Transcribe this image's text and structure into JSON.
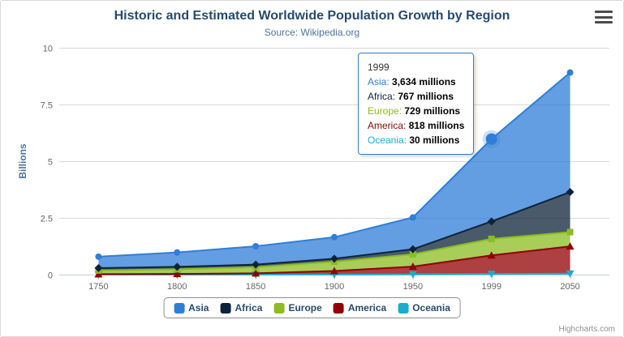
{
  "chart_data": {
    "type": "area",
    "stacked": true,
    "title": "Historic and Estimated Worldwide Population Growth by Region",
    "subtitle": "Source: Wikipedia.org",
    "categories": [
      "1750",
      "1800",
      "1850",
      "1900",
      "1950",
      "1999",
      "2050"
    ],
    "unit": "millions",
    "xlabel": "",
    "ylabel": "Billions",
    "ylim": [
      0,
      10
    ],
    "y_ticks": [
      0,
      2.5,
      5,
      7.5,
      10
    ],
    "grid": true,
    "legend_position": "bottom",
    "series": [
      {
        "name": "Asia",
        "color": "#2f7ed8",
        "marker": "circle",
        "values": [
          502,
          635,
          809,
          947,
          1402,
          3634,
          5268
        ]
      },
      {
        "name": "Africa",
        "color": "#0d233a",
        "marker": "diamond",
        "values": [
          106,
          107,
          111,
          133,
          221,
          767,
          1766
        ]
      },
      {
        "name": "Europe",
        "color": "#8bbc21",
        "marker": "square",
        "values": [
          163,
          203,
          276,
          408,
          547,
          729,
          628
        ]
      },
      {
        "name": "America",
        "color": "#910000",
        "marker": "triangle",
        "values": [
          18,
          31,
          54,
          156,
          339,
          818,
          1201
        ]
      },
      {
        "name": "Oceania",
        "color": "#1aadce",
        "marker": "triangle-down",
        "values": [
          2,
          2,
          2,
          6,
          13,
          30,
          46
        ]
      }
    ]
  },
  "tooltip": {
    "header": "1999",
    "rows": [
      {
        "name": "Asia",
        "value": "3,634 millions"
      },
      {
        "name": "Africa",
        "value": "767 millions"
      },
      {
        "name": "Europe",
        "value": "729 millions"
      },
      {
        "name": "America",
        "value": "818 millions"
      },
      {
        "name": "Oceania",
        "value": "30 millions"
      }
    ]
  },
  "hover": {
    "series": "Asia",
    "category": "1999"
  },
  "credits": "Highcharts.com",
  "theme": {
    "title_color": "#274b6d",
    "subtitle_color": "#4d759e",
    "axis_label_color": "#666666",
    "axis_title_color": "#4d759e",
    "grid_color": "#d8d8d8",
    "axis_line_color": "#c0d0e0",
    "legend_border_color": "#909090",
    "legend_text_color": "#274b6d",
    "tooltip_border_color": "#2f7ed8",
    "credits_color": "#909090",
    "fill_opacity": 0.75
  }
}
